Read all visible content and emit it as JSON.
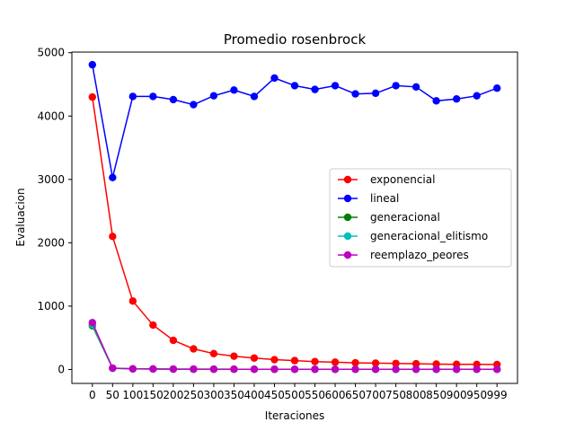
{
  "chart_data": {
    "type": "line",
    "title": "Promedio rosenbrock",
    "xlabel": "Iteraciones",
    "ylabel": "Evaluacion",
    "x": [
      0,
      50,
      100,
      150,
      200,
      250,
      300,
      350,
      400,
      450,
      500,
      550,
      600,
      650,
      700,
      750,
      800,
      850,
      900,
      950,
      999
    ],
    "xtick_labels": [
      "0",
      "50",
      "100",
      "150",
      "200",
      "250",
      "300",
      "350",
      "400",
      "450",
      "500",
      "550",
      "600",
      "650",
      "700",
      "750",
      "800",
      "850",
      "900",
      "950",
      "999"
    ],
    "yticks": [
      0,
      1000,
      2000,
      3000,
      4000,
      5000
    ],
    "ytick_labels": [
      "0",
      "1000",
      "2000",
      "3000",
      "4000",
      "5000"
    ],
    "ylim": [
      -220,
      5010
    ],
    "grid": false,
    "legend_position": "center-right",
    "series": [
      {
        "name": "exponencial",
        "color": "#ff0000",
        "values": [
          4300,
          2100,
          1080,
          700,
          460,
          325,
          250,
          210,
          180,
          155,
          140,
          125,
          115,
          105,
          100,
          95,
          90,
          85,
          82,
          80,
          78
        ]
      },
      {
        "name": "lineal",
        "color": "#0000ff",
        "values": [
          4810,
          3030,
          4310,
          4310,
          4260,
          4180,
          4320,
          4410,
          4310,
          4600,
          4480,
          4420,
          4480,
          4350,
          4360,
          4480,
          4460,
          4240,
          4270,
          4320,
          4440
        ]
      },
      {
        "name": "generacional",
        "color": "#008000",
        "values": [
          690,
          20,
          10,
          8,
          6,
          5,
          5,
          4,
          4,
          4,
          3,
          3,
          3,
          3,
          3,
          3,
          3,
          3,
          2,
          2,
          2
        ]
      },
      {
        "name": "generacional_elitismo",
        "color": "#00bfbf",
        "values": [
          710,
          18,
          9,
          7,
          5,
          4,
          4,
          3,
          3,
          3,
          3,
          2,
          2,
          2,
          2,
          2,
          2,
          2,
          2,
          2,
          2
        ]
      },
      {
        "name": "reemplazo_peores",
        "color": "#bf00bf",
        "values": [
          740,
          22,
          10,
          8,
          6,
          5,
          4,
          4,
          3,
          3,
          3,
          3,
          2,
          2,
          2,
          2,
          2,
          2,
          2,
          2,
          2
        ]
      }
    ]
  }
}
